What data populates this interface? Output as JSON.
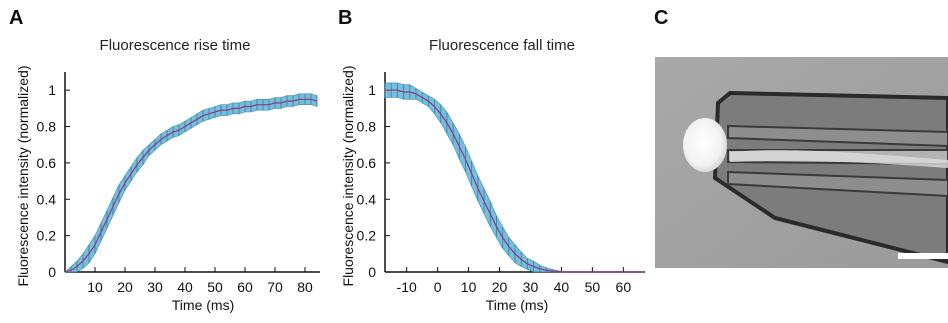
{
  "panels": {
    "a": {
      "letter": "A"
    },
    "b": {
      "letter": "B"
    },
    "c": {
      "letter": "C"
    }
  },
  "chart_data": [
    {
      "type": "line",
      "panel": "A",
      "title": "Fluorescence rise time",
      "xlabel": "Time (ms)",
      "ylabel": "Fluorescence intensity (normalized)",
      "xlim": [
        0,
        85
      ],
      "ylim": [
        0,
        1.1
      ],
      "xticks": [
        10,
        20,
        30,
        40,
        50,
        60,
        70,
        80
      ],
      "yticks": [
        0,
        0.2,
        0.4,
        0.6,
        0.8,
        1
      ],
      "yticklabels": [
        "0",
        "0.2",
        "0.4",
        "0.6",
        "0.8",
        "1"
      ],
      "grid": false,
      "series": [
        {
          "x": [
            0,
            2,
            4,
            6,
            8,
            10,
            12,
            14,
            16,
            18,
            20,
            22,
            24,
            26,
            28,
            30,
            32,
            34,
            36,
            38,
            40,
            42,
            44,
            46,
            48,
            50,
            52,
            54,
            56,
            58,
            60,
            62,
            64,
            66,
            68,
            70,
            72,
            74,
            76,
            78,
            80,
            82,
            84
          ],
          "y": [
            0.0,
            0.01,
            0.03,
            0.06,
            0.1,
            0.15,
            0.22,
            0.29,
            0.36,
            0.43,
            0.49,
            0.54,
            0.59,
            0.63,
            0.67,
            0.7,
            0.73,
            0.75,
            0.77,
            0.78,
            0.8,
            0.82,
            0.84,
            0.86,
            0.87,
            0.88,
            0.89,
            0.89,
            0.9,
            0.9,
            0.91,
            0.91,
            0.92,
            0.92,
            0.92,
            0.93,
            0.93,
            0.94,
            0.94,
            0.95,
            0.95,
            0.95,
            0.94
          ],
          "err": [
            0.0,
            0.02,
            0.03,
            0.04,
            0.05,
            0.05,
            0.05,
            0.05,
            0.05,
            0.05,
            0.04,
            0.04,
            0.04,
            0.04,
            0.03,
            0.03,
            0.03,
            0.03,
            0.03,
            0.03,
            0.03,
            0.03,
            0.03,
            0.03,
            0.03,
            0.03,
            0.03,
            0.03,
            0.03,
            0.03,
            0.03,
            0.03,
            0.03,
            0.03,
            0.03,
            0.03,
            0.03,
            0.03,
            0.03,
            0.03,
            0.03,
            0.03,
            0.03
          ]
        }
      ]
    },
    {
      "type": "line",
      "panel": "B",
      "title": "Fluorescence fall time",
      "xlabel": "Time (ms)",
      "ylabel": "Fluorescence intensity (normalized)",
      "xlim": [
        -17,
        67
      ],
      "ylim": [
        0,
        1.1
      ],
      "xticks": [
        -10,
        0,
        10,
        20,
        30,
        40,
        50,
        60
      ],
      "yticks": [
        0,
        0.2,
        0.4,
        0.6,
        0.8,
        1
      ],
      "yticklabels": [
        "0",
        "0.2",
        "0.4",
        "0.6",
        "0.8",
        "1"
      ],
      "grid": false,
      "series": [
        {
          "x": [
            -17,
            -15,
            -13,
            -11,
            -9,
            -7,
            -5,
            -3,
            -1,
            1,
            3,
            5,
            7,
            9,
            11,
            13,
            15,
            17,
            19,
            21,
            23,
            25,
            27,
            29,
            31,
            33,
            35,
            37,
            39,
            41,
            43,
            45,
            47,
            49,
            51,
            53,
            55,
            57,
            59,
            61,
            63,
            65,
            67
          ],
          "y": [
            1.0,
            1.0,
            1.0,
            0.99,
            0.99,
            0.98,
            0.96,
            0.94,
            0.91,
            0.87,
            0.82,
            0.76,
            0.69,
            0.62,
            0.54,
            0.46,
            0.39,
            0.32,
            0.25,
            0.19,
            0.14,
            0.1,
            0.07,
            0.045,
            0.03,
            0.018,
            0.01,
            0.005,
            0.002,
            0.0,
            0.0,
            0.0,
            0.0,
            0.0,
            0.0,
            0.0,
            0.0,
            0.0,
            0.0,
            0.0,
            0.0,
            0.0,
            0.0
          ],
          "err": [
            0.04,
            0.04,
            0.04,
            0.04,
            0.04,
            0.03,
            0.03,
            0.03,
            0.04,
            0.05,
            0.06,
            0.06,
            0.07,
            0.07,
            0.07,
            0.07,
            0.07,
            0.07,
            0.06,
            0.06,
            0.05,
            0.05,
            0.04,
            0.03,
            0.03,
            0.02,
            0.015,
            0.01,
            0.005,
            0.003,
            0.002,
            0.0,
            0.0,
            0.0,
            0.0,
            0.0,
            0.0,
            0.0,
            0.0,
            0.0,
            0.0,
            0.0,
            0.0
          ]
        }
      ]
    }
  ]
}
